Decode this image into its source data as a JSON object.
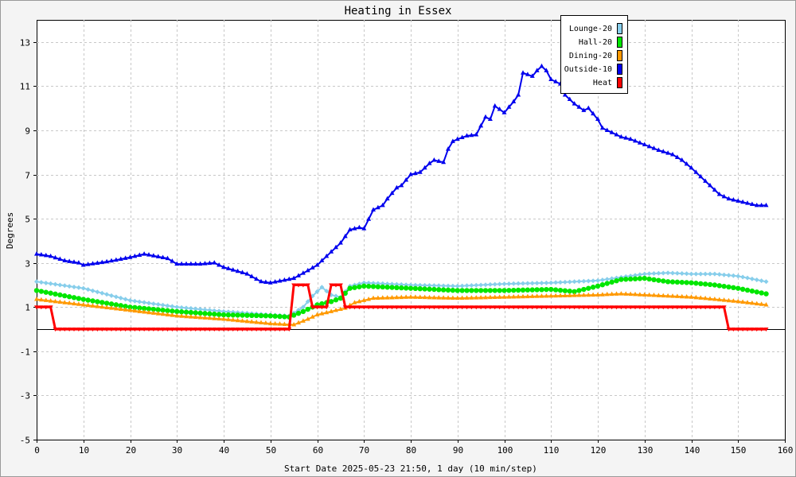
{
  "chart_data": {
    "type": "line",
    "title": "Heating in Essex",
    "xlabel": "Start Date 2025-05-23 21:50, 1 day (10 min/step)",
    "ylabel": "Degrees",
    "xlim": [
      0,
      160
    ],
    "ylim": [
      -5,
      14
    ],
    "x_ticks": [
      0,
      10,
      20,
      30,
      40,
      50,
      60,
      70,
      80,
      90,
      100,
      110,
      120,
      130,
      140,
      150,
      160
    ],
    "y_ticks": [
      -5,
      -3,
      -1,
      1,
      3,
      5,
      7,
      9,
      11,
      13
    ],
    "grid": true,
    "legend_position": "top-right",
    "series": [
      {
        "name": "Lounge-20",
        "color": "#87ceeb",
        "marker": "diamond",
        "points": [
          [
            0,
            2.15
          ],
          [
            10,
            1.85
          ],
          [
            20,
            1.3
          ],
          [
            30,
            1.0
          ],
          [
            40,
            0.8
          ],
          [
            50,
            0.65
          ],
          [
            54,
            0.6
          ],
          [
            57,
            1.0
          ],
          [
            59,
            1.5
          ],
          [
            61,
            1.9
          ],
          [
            63,
            1.55
          ],
          [
            65,
            1.45
          ],
          [
            67,
            1.95
          ],
          [
            70,
            2.1
          ],
          [
            80,
            2.0
          ],
          [
            90,
            1.95
          ],
          [
            100,
            2.05
          ],
          [
            110,
            2.1
          ],
          [
            120,
            2.2
          ],
          [
            130,
            2.5
          ],
          [
            135,
            2.55
          ],
          [
            140,
            2.5
          ],
          [
            145,
            2.5
          ],
          [
            150,
            2.4
          ],
          [
            156,
            2.15
          ]
        ]
      },
      {
        "name": "Hall-20",
        "color": "#00e600",
        "marker": "circle",
        "points": [
          [
            0,
            1.75
          ],
          [
            10,
            1.35
          ],
          [
            20,
            1.0
          ],
          [
            30,
            0.8
          ],
          [
            40,
            0.65
          ],
          [
            50,
            0.6
          ],
          [
            54,
            0.55
          ],
          [
            57,
            0.8
          ],
          [
            60,
            1.1
          ],
          [
            63,
            1.25
          ],
          [
            65,
            1.4
          ],
          [
            67,
            1.85
          ],
          [
            70,
            1.95
          ],
          [
            80,
            1.85
          ],
          [
            90,
            1.75
          ],
          [
            100,
            1.75
          ],
          [
            110,
            1.8
          ],
          [
            115,
            1.7
          ],
          [
            120,
            1.95
          ],
          [
            125,
            2.25
          ],
          [
            130,
            2.3
          ],
          [
            135,
            2.15
          ],
          [
            140,
            2.1
          ],
          [
            145,
            2.0
          ],
          [
            150,
            1.85
          ],
          [
            156,
            1.6
          ]
        ]
      },
      {
        "name": "Dining-20",
        "color": "#ff9900",
        "marker": "triangle",
        "points": [
          [
            0,
            1.35
          ],
          [
            10,
            1.1
          ],
          [
            20,
            0.85
          ],
          [
            30,
            0.6
          ],
          [
            40,
            0.45
          ],
          [
            50,
            0.25
          ],
          [
            55,
            0.2
          ],
          [
            58,
            0.45
          ],
          [
            60,
            0.65
          ],
          [
            63,
            0.8
          ],
          [
            66,
            0.95
          ],
          [
            68,
            1.2
          ],
          [
            72,
            1.4
          ],
          [
            80,
            1.45
          ],
          [
            90,
            1.4
          ],
          [
            100,
            1.45
          ],
          [
            110,
            1.5
          ],
          [
            120,
            1.55
          ],
          [
            125,
            1.6
          ],
          [
            130,
            1.55
          ],
          [
            140,
            1.45
          ],
          [
            145,
            1.35
          ],
          [
            150,
            1.25
          ],
          [
            156,
            1.1
          ]
        ]
      },
      {
        "name": "Outside-10",
        "color": "#0000ee",
        "marker": "triangle",
        "points": [
          [
            0,
            3.4
          ],
          [
            3,
            3.3
          ],
          [
            6,
            3.1
          ],
          [
            9,
            3.0
          ],
          [
            10,
            2.9
          ],
          [
            15,
            3.05
          ],
          [
            20,
            3.25
          ],
          [
            23,
            3.4
          ],
          [
            28,
            3.2
          ],
          [
            30,
            2.95
          ],
          [
            35,
            2.95
          ],
          [
            38,
            3.0
          ],
          [
            40,
            2.8
          ],
          [
            45,
            2.5
          ],
          [
            48,
            2.15
          ],
          [
            50,
            2.1
          ],
          [
            55,
            2.3
          ],
          [
            58,
            2.65
          ],
          [
            60,
            2.9
          ],
          [
            63,
            3.5
          ],
          [
            65,
            3.9
          ],
          [
            67,
            4.5
          ],
          [
            69,
            4.6
          ],
          [
            70,
            4.55
          ],
          [
            72,
            5.4
          ],
          [
            74,
            5.6
          ],
          [
            75,
            5.9
          ],
          [
            77,
            6.4
          ],
          [
            78,
            6.5
          ],
          [
            80,
            7.0
          ],
          [
            82,
            7.1
          ],
          [
            84,
            7.5
          ],
          [
            85,
            7.65
          ],
          [
            87,
            7.55
          ],
          [
            88,
            8.15
          ],
          [
            89,
            8.5
          ],
          [
            90,
            8.6
          ],
          [
            92,
            8.75
          ],
          [
            94,
            8.8
          ],
          [
            95,
            9.2
          ],
          [
            96,
            9.6
          ],
          [
            97,
            9.5
          ],
          [
            98,
            10.1
          ],
          [
            100,
            9.8
          ],
          [
            102,
            10.3
          ],
          [
            103,
            10.6
          ],
          [
            104,
            11.6
          ],
          [
            106,
            11.45
          ],
          [
            107,
            11.7
          ],
          [
            108,
            11.9
          ],
          [
            109,
            11.7
          ],
          [
            110,
            11.3
          ],
          [
            112,
            11.1
          ],
          [
            113,
            10.6
          ],
          [
            115,
            10.2
          ],
          [
            117,
            9.9
          ],
          [
            118,
            10.0
          ],
          [
            120,
            9.5
          ],
          [
            121,
            9.1
          ],
          [
            123,
            8.9
          ],
          [
            125,
            8.7
          ],
          [
            127,
            8.6
          ],
          [
            130,
            8.35
          ],
          [
            133,
            8.1
          ],
          [
            136,
            7.9
          ],
          [
            138,
            7.65
          ],
          [
            140,
            7.3
          ],
          [
            142,
            6.9
          ],
          [
            144,
            6.5
          ],
          [
            146,
            6.1
          ],
          [
            148,
            5.9
          ],
          [
            150,
            5.8
          ],
          [
            152,
            5.7
          ],
          [
            154,
            5.6
          ],
          [
            156,
            5.6
          ]
        ]
      },
      {
        "name": "Heat",
        "color": "#ff0000",
        "marker": "triangle-down",
        "points": [
          [
            0,
            1
          ],
          [
            3,
            1
          ],
          [
            4,
            0
          ],
          [
            54,
            0
          ],
          [
            55,
            2
          ],
          [
            58,
            2
          ],
          [
            59,
            1
          ],
          [
            62,
            1
          ],
          [
            63,
            2
          ],
          [
            65,
            2
          ],
          [
            66,
            1
          ],
          [
            147,
            1
          ],
          [
            148,
            0
          ],
          [
            156,
            0
          ]
        ]
      }
    ]
  }
}
